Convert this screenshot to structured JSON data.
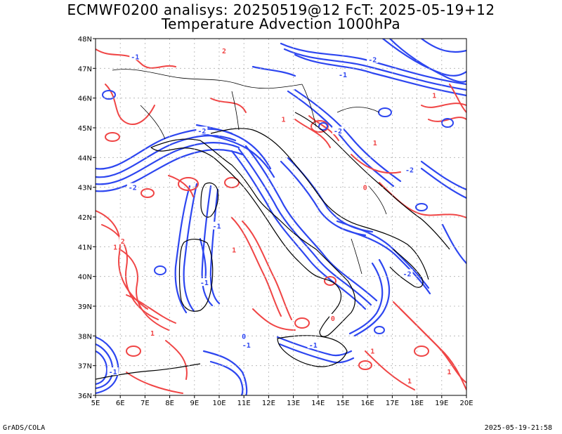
{
  "title": {
    "line1": "ECMWF0200 analisys: 20250519@12 FcT: 2025-05-19+12",
    "line2": "Temperature Advection 1000hPa"
  },
  "footer": {
    "left": "GrADS/COLA",
    "right": "2025-05-19-21:58"
  },
  "map": {
    "lon_range": [
      5,
      20
    ],
    "lat_range": [
      36,
      48
    ],
    "x_tick_labels": [
      "5E",
      "6E",
      "7E",
      "8E",
      "9E",
      "10E",
      "11E",
      "12E",
      "13E",
      "14E",
      "15E",
      "16E",
      "17E",
      "18E",
      "19E",
      "20E"
    ],
    "y_tick_labels": [
      "36N",
      "37N",
      "38N",
      "39N",
      "40N",
      "41N",
      "42N",
      "43N",
      "44N",
      "45N",
      "46N",
      "47N",
      "48N"
    ],
    "grid_lines": "dotted",
    "colors": {
      "positive_advection": "#f04545",
      "negative_advection": "#2d46f0",
      "coastline": "#000000",
      "background": "#ffffff"
    },
    "contour_labels": [
      {
        "text": "-1",
        "lon": 6.6,
        "lat": 47.4,
        "color": "negative"
      },
      {
        "text": "-2",
        "lon": 16.2,
        "lat": 47.3,
        "color": "negative"
      },
      {
        "text": "2",
        "lon": 10.2,
        "lat": 47.6,
        "color": "positive"
      },
      {
        "text": "-1",
        "lon": 15.0,
        "lat": 46.8,
        "color": "negative"
      },
      {
        "text": "1",
        "lon": 18.7,
        "lat": 46.1,
        "color": "positive"
      },
      {
        "text": "-2",
        "lon": 9.3,
        "lat": 44.9,
        "color": "negative"
      },
      {
        "text": "1",
        "lon": 12.6,
        "lat": 45.3,
        "color": "positive"
      },
      {
        "text": "-2",
        "lon": 14.8,
        "lat": 44.9,
        "color": "negative"
      },
      {
        "text": "1",
        "lon": 16.3,
        "lat": 44.5,
        "color": "positive"
      },
      {
        "text": "-2",
        "lon": 6.5,
        "lat": 43.0,
        "color": "negative"
      },
      {
        "text": "-2",
        "lon": 17.7,
        "lat": 43.6,
        "color": "negative"
      },
      {
        "text": "0",
        "lon": 15.9,
        "lat": 43.0,
        "color": "positive"
      },
      {
        "text": "1",
        "lon": 5.8,
        "lat": 41.0,
        "color": "positive"
      },
      {
        "text": "2",
        "lon": 6.1,
        "lat": 41.2,
        "color": "positive"
      },
      {
        "text": "-1",
        "lon": 9.9,
        "lat": 41.7,
        "color": "negative"
      },
      {
        "text": "1",
        "lon": 10.6,
        "lat": 40.9,
        "color": "positive"
      },
      {
        "text": "-2",
        "lon": 17.6,
        "lat": 40.1,
        "color": "negative"
      },
      {
        "text": "-1",
        "lon": 9.4,
        "lat": 39.8,
        "color": "negative"
      },
      {
        "text": "0",
        "lon": 14.6,
        "lat": 38.6,
        "color": "positive"
      },
      {
        "text": "1",
        "lon": 7.3,
        "lat": 38.1,
        "color": "positive"
      },
      {
        "text": "0",
        "lon": 11.0,
        "lat": 38.0,
        "color": "negative"
      },
      {
        "text": "-1",
        "lon": 11.1,
        "lat": 37.7,
        "color": "negative"
      },
      {
        "text": "1",
        "lon": 16.2,
        "lat": 37.5,
        "color": "positive"
      },
      {
        "text": "-1",
        "lon": 13.8,
        "lat": 37.7,
        "color": "negative"
      },
      {
        "text": "1",
        "lon": 17.7,
        "lat": 36.5,
        "color": "positive"
      },
      {
        "text": "1",
        "lon": 19.3,
        "lat": 36.8,
        "color": "positive"
      },
      {
        "text": "-1",
        "lon": 5.7,
        "lat": 36.8,
        "color": "negative"
      }
    ]
  }
}
